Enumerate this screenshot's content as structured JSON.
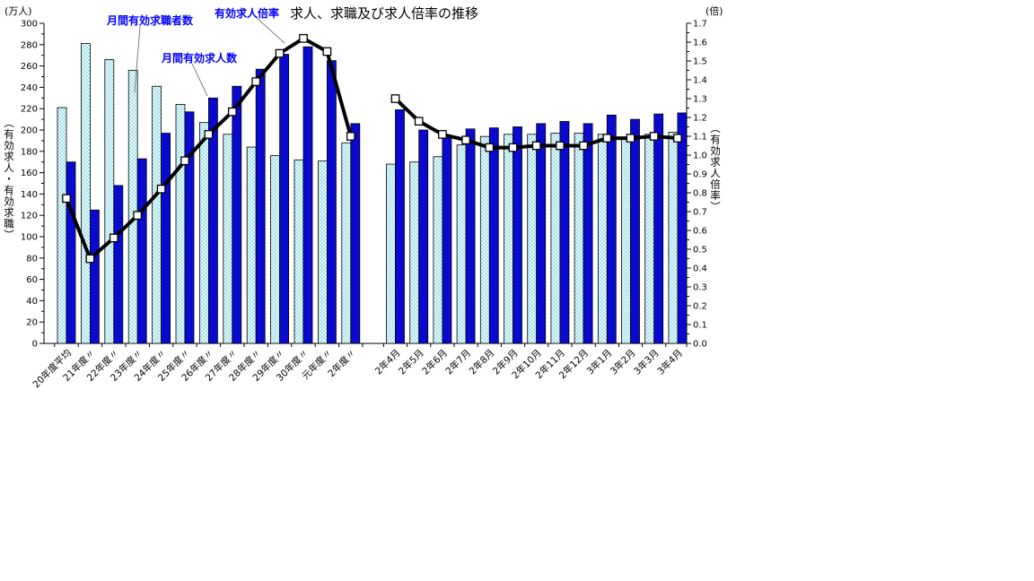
{
  "chart_data": {
    "type": "bar+line",
    "title": "求人、求職及び求人倍率の推移",
    "unit_left": "(万人)",
    "unit_right": "(倍)",
    "axis_left_title": "（有効求人・有効求職）",
    "axis_right_title": "（有効求人倍率）",
    "legend_position": "top-left callouts",
    "grid": "off",
    "series_labels": {
      "seekers": "月間有効求職者数",
      "openings": "月間有効求人数",
      "ratio": "有効求人倍率"
    },
    "axis_left": {
      "min": 0,
      "max": 300,
      "major_step": 20,
      "minor_step": 10,
      "labels": [
        "0",
        "20",
        "40",
        "60",
        "80",
        "100",
        "120",
        "140",
        "160",
        "180",
        "200",
        "220",
        "240",
        "260",
        "280",
        "300"
      ]
    },
    "axis_right": {
      "min": 0.0,
      "max": 1.7,
      "major_step": 0.1,
      "minor_step": 0.05,
      "labels": [
        "0.0",
        "0.1",
        "0.2",
        "0.3",
        "0.4",
        "0.5",
        "0.6",
        "0.7",
        "0.8",
        "0.9",
        "1.0",
        "1.1",
        "1.2",
        "1.3",
        "1.4",
        "1.5",
        "1.6",
        "1.7"
      ]
    },
    "annual": {
      "categories": [
        "20年度平均",
        "21年度〃",
        "22年度〃",
        "23年度〃",
        "24年度〃",
        "25年度〃",
        "26年度〃",
        "27年度〃",
        "28年度〃",
        "29年度〃",
        "30年度〃",
        "元年度〃",
        "2年度〃"
      ],
      "seekers": [
        221,
        281,
        266,
        256,
        241,
        224,
        207,
        196,
        184,
        176,
        172,
        171,
        188
      ],
      "openings": [
        170,
        125,
        148,
        173,
        197,
        217,
        230,
        241,
        257,
        271,
        278,
        265,
        206
      ],
      "ratio": [
        0.77,
        0.45,
        0.56,
        0.68,
        0.82,
        0.97,
        1.11,
        1.23,
        1.39,
        1.54,
        1.62,
        1.55,
        1.1
      ]
    },
    "monthly": {
      "categories": [
        "2年4月",
        "2年5月",
        "2年6月",
        "2年7月",
        "2年8月",
        "2年9月",
        "2年10月",
        "2年11月",
        "2年12月",
        "3年1月",
        "3年2月",
        "3年3月",
        "3年4月"
      ],
      "seekers": [
        168,
        170,
        175,
        186,
        194,
        196,
        196,
        197,
        197,
        196,
        193,
        196,
        198
      ],
      "openings": [
        219,
        200,
        194,
        201,
        202,
        203,
        206,
        208,
        206,
        214,
        210,
        215,
        216
      ],
      "ratio": [
        1.3,
        1.18,
        1.11,
        1.08,
        1.04,
        1.04,
        1.05,
        1.05,
        1.05,
        1.09,
        1.09,
        1.1,
        1.09
      ]
    },
    "colors": {
      "seekers_bg": "#EAF8FA",
      "seekers_dot": "#6FCFDC",
      "openings": "#0909CF",
      "bar_stroke": "#000000",
      "line": "#000000",
      "marker_fill": "#FFFFFF",
      "legend_text": "#0000FF",
      "callout": "#808080",
      "axis": "#000000"
    }
  }
}
